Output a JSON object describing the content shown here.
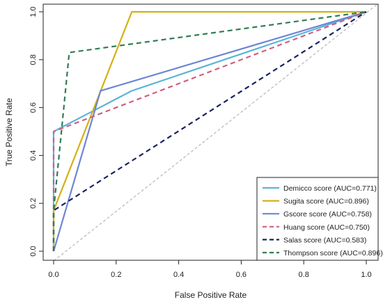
{
  "chart_data": {
    "type": "line",
    "xlabel": "False Positive Rate",
    "ylabel": "True Positive Rate",
    "xlim": [
      0,
      1
    ],
    "ylim": [
      0,
      1
    ],
    "xticks": [
      "0.0",
      "0.2",
      "0.4",
      "0.6",
      "0.8",
      "1.0"
    ],
    "yticks": [
      "0.0",
      "0.2",
      "0.4",
      "0.6",
      "0.8",
      "1.0"
    ],
    "grid": false,
    "legend_position": "bottom-right",
    "reference_line": {
      "x": [
        0,
        1
      ],
      "y": [
        0,
        1
      ],
      "color": "#aaaaaa",
      "style": "dashed"
    },
    "series": [
      {
        "name": "Demicco score (AUC=0.771)",
        "color": "#5bb4d9",
        "style": "solid",
        "x": [
          0,
          0,
          0.25,
          1
        ],
        "y": [
          0,
          0.5,
          0.67,
          1
        ]
      },
      {
        "name": "Sugita score (AUC=0.896)",
        "color": "#d4b012",
        "style": "solid",
        "x": [
          0,
          0,
          0.25,
          1
        ],
        "y": [
          0,
          0.17,
          1,
          1
        ]
      },
      {
        "name": "Gscore score (AUC=0.758)",
        "color": "#6c86d4",
        "style": "solid",
        "x": [
          0,
          0.15,
          1
        ],
        "y": [
          0,
          0.67,
          1
        ]
      },
      {
        "name": "Huang score (AUC=0.750)",
        "color": "#cf5f84",
        "style": "dashed",
        "x": [
          0,
          0,
          1
        ],
        "y": [
          0,
          0.5,
          1
        ]
      },
      {
        "name": "Salas score (AUC=0.583)",
        "color": "#1a2160",
        "style": "dashed",
        "x": [
          0,
          0,
          1
        ],
        "y": [
          0,
          0.17,
          1
        ]
      },
      {
        "name": "Thompson score (AUC=0.896)",
        "color": "#2e7d54",
        "style": "dashed",
        "x": [
          0,
          0,
          0.05,
          1
        ],
        "y": [
          0,
          0.17,
          0.83,
          1
        ]
      }
    ]
  }
}
